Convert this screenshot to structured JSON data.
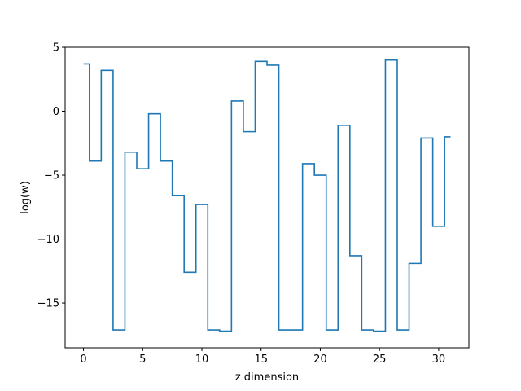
{
  "chart_data": {
    "type": "line",
    "drawstyle": "steps-mid",
    "title": "",
    "xlabel": "z dimension",
    "ylabel": "log(w)",
    "xlim": [
      -1.55,
      32.55
    ],
    "ylim": [
      -18.5,
      5
    ],
    "xticks": [
      0,
      5,
      10,
      15,
      20,
      25,
      30
    ],
    "yticks": [
      5,
      0,
      -5,
      -10,
      -15
    ],
    "ytick_labels": [
      "5",
      "0",
      "−5",
      "−10",
      "−15"
    ],
    "grid": false,
    "series": [
      {
        "color": "#1f77b4",
        "x": [
          0,
          1,
          2,
          3,
          4,
          5,
          6,
          7,
          8,
          9,
          10,
          11,
          12,
          13,
          14,
          15,
          16,
          17,
          18,
          19,
          20,
          21,
          22,
          23,
          24,
          25,
          26,
          27,
          28,
          29,
          30,
          31
        ],
        "y": [
          3.7,
          -3.9,
          3.2,
          -17.1,
          -3.2,
          -4.5,
          -0.2,
          -3.9,
          -6.6,
          -12.6,
          -7.3,
          -17.1,
          -17.2,
          0.8,
          -1.6,
          3.9,
          3.6,
          -17.1,
          -17.1,
          -4.1,
          -5.0,
          -17.1,
          -1.1,
          -11.3,
          -17.1,
          -17.2,
          4.0,
          -17.1,
          -11.9,
          -2.1,
          -9.0,
          -2.0
        ]
      }
    ]
  }
}
